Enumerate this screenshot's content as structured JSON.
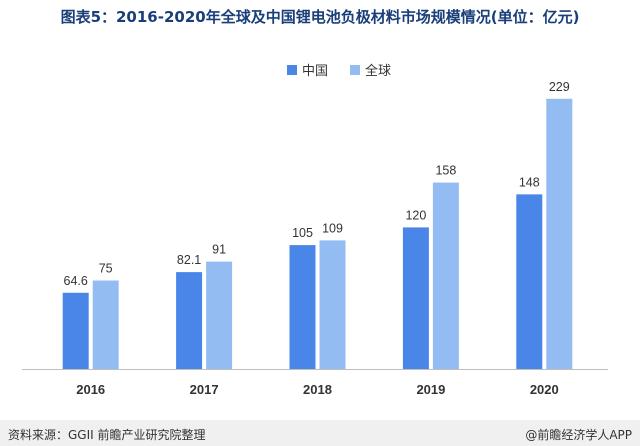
{
  "colors": {
    "china": "#4a86e8",
    "global": "#93bdf2",
    "title": "#1a3e7a"
  },
  "footer": {
    "source": "资料来源：GGII 前瞻产业研究院整理",
    "brand": "@前瞻经济学人APP"
  },
  "chart_data": {
    "type": "bar",
    "title": "图表5：2016-2020年全球及中国锂电池负极材料市场规模情况(单位：亿元)",
    "categories": [
      "2016",
      "2017",
      "2018",
      "2019",
      "2020"
    ],
    "series": [
      {
        "name": "中国",
        "values": [
          64.6,
          82.1,
          105,
          120,
          148
        ],
        "labels": [
          "64.6",
          "82.1",
          "105",
          "120",
          "148"
        ]
      },
      {
        "name": "全球",
        "values": [
          75,
          91,
          109,
          158,
          229
        ],
        "labels": [
          "75",
          "91",
          "109",
          "158",
          "229"
        ]
      }
    ],
    "xlabel": "",
    "ylabel": "",
    "ylim": [
      0,
      250
    ],
    "legend": "top-center",
    "grid": false
  }
}
